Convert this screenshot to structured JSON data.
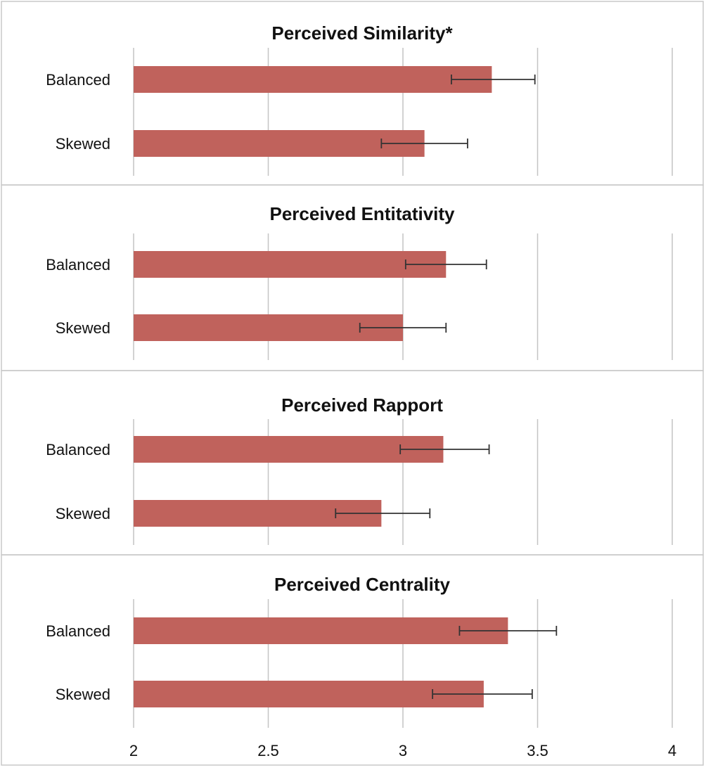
{
  "chart_data": {
    "type": "bar",
    "orientation": "horizontal",
    "xlim": [
      2,
      4
    ],
    "x_ticks": [
      "2",
      "2.5",
      "3",
      "3.5",
      "4"
    ],
    "x_tick_values": [
      2,
      2.5,
      3,
      3.5,
      4
    ],
    "grid": true,
    "bar_color": "#c0625c",
    "error_bar_color": "#333333",
    "panels": [
      {
        "title": "Perceived Similarity*",
        "categories": [
          "Balanced",
          "Skewed"
        ],
        "values": [
          3.33,
          3.08
        ],
        "error_low": [
          3.18,
          2.92
        ],
        "error_high": [
          3.49,
          3.24
        ]
      },
      {
        "title": "Perceived Entitativity",
        "categories": [
          "Balanced",
          "Skewed"
        ],
        "values": [
          3.16,
          3.0
        ],
        "error_low": [
          3.01,
          2.84
        ],
        "error_high": [
          3.31,
          3.16
        ]
      },
      {
        "title": "Perceived Rapport",
        "categories": [
          "Balanced",
          "Skewed"
        ],
        "values": [
          3.15,
          2.92
        ],
        "error_low": [
          2.99,
          2.75
        ],
        "error_high": [
          3.32,
          3.1
        ]
      },
      {
        "title": "Perceived Centrality",
        "categories": [
          "Balanced",
          "Skewed"
        ],
        "values": [
          3.39,
          3.3
        ],
        "error_low": [
          3.21,
          3.11
        ],
        "error_high": [
          3.57,
          3.48
        ]
      }
    ]
  }
}
